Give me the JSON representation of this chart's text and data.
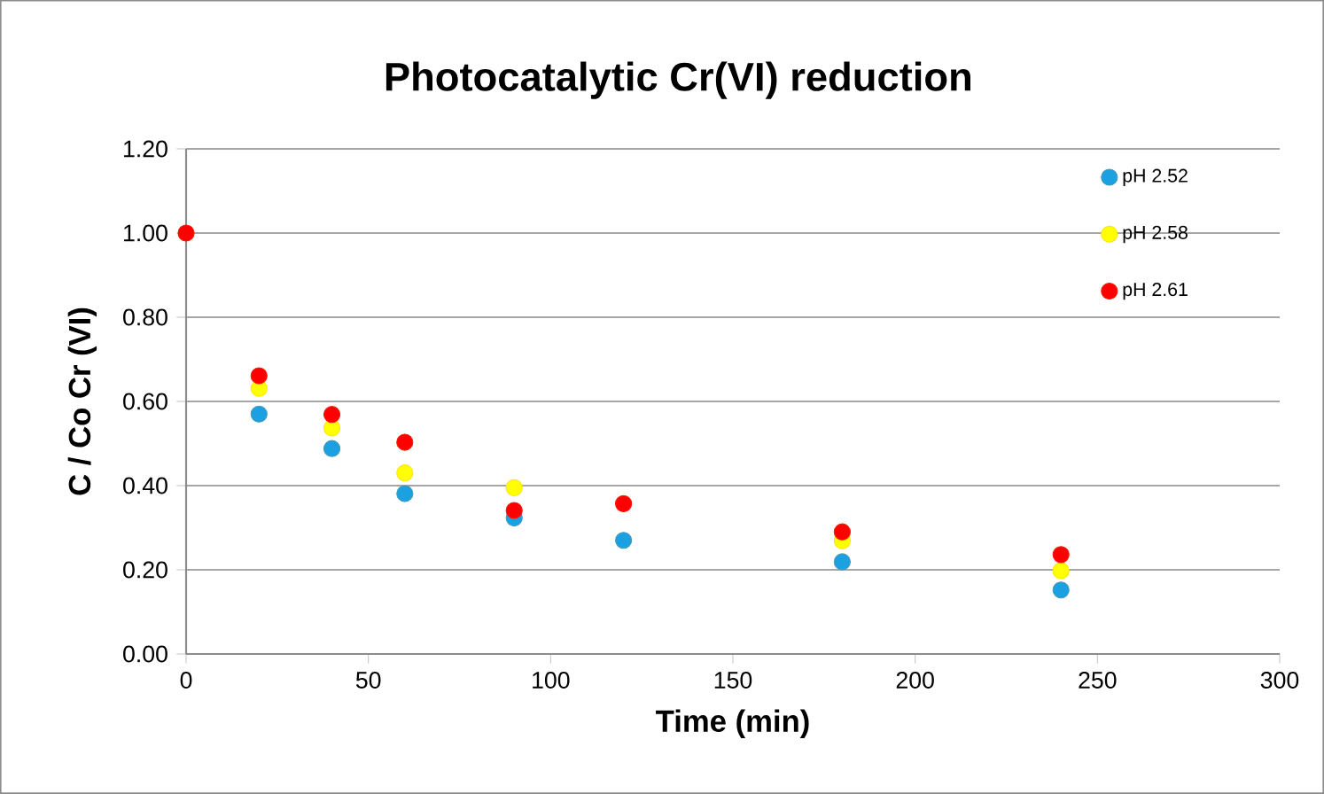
{
  "chart_data": {
    "type": "scatter",
    "title": "Photocatalytic Cr(VI) reduction",
    "xlabel": "Time (min)",
    "ylabel": "C / Co Cr (VI)",
    "x": [
      0,
      20,
      40,
      60,
      90,
      120,
      180,
      240
    ],
    "series": [
      {
        "name": "pH 2.52",
        "color": "#1ba1e2",
        "values": [
          null,
          0.57,
          0.488,
          0.381,
          0.323,
          0.27,
          0.219,
          0.152
        ]
      },
      {
        "name": "pH 2.58",
        "color": "#ffff00",
        "values": [
          null,
          0.631,
          0.537,
          0.43,
          0.395,
          null,
          0.269,
          0.198
        ]
      },
      {
        "name": "pH 2.61",
        "color": "#ff0000",
        "values": [
          1.0,
          0.661,
          0.569,
          0.503,
          0.341,
          0.357,
          0.29,
          0.236
        ]
      }
    ],
    "xlim": [
      0,
      300
    ],
    "xticks": [
      0,
      50,
      100,
      150,
      200,
      250,
      300
    ],
    "ylim": [
      0,
      1.2
    ],
    "yticks": [
      {
        "value": 0,
        "label": "0.00"
      },
      {
        "value": 0.2,
        "label": "0.20"
      },
      {
        "value": 0.4,
        "label": "0.40"
      },
      {
        "value": 0.6,
        "label": "0.60"
      },
      {
        "value": 0.8,
        "label": "0.80"
      },
      {
        "value": 1.0,
        "label": "1.00"
      },
      {
        "value": 1.2,
        "label": "1.20"
      }
    ],
    "grid": "y",
    "legend": "top right",
    "marker": "circle"
  }
}
